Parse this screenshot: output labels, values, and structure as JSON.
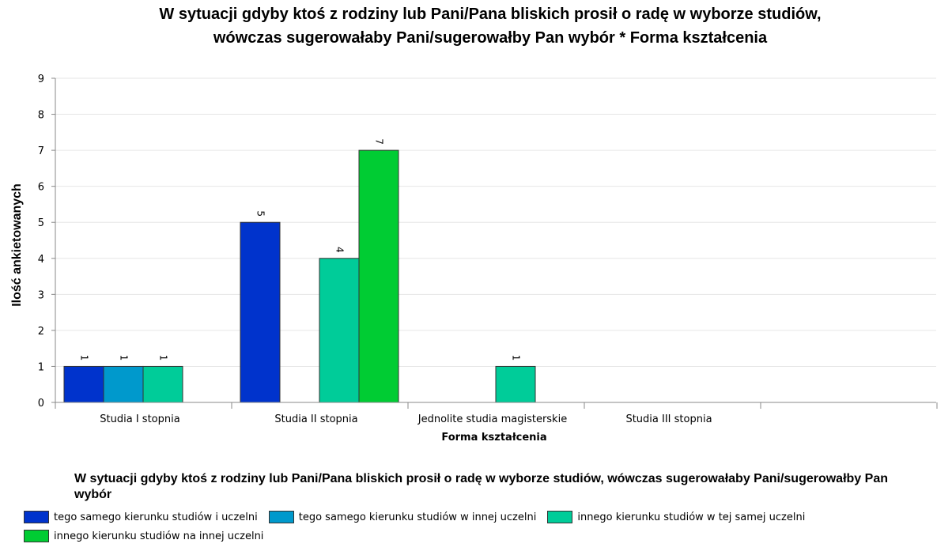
{
  "chart_data": {
    "type": "bar",
    "title": "W sytuacji gdyby ktoś z rodziny lub Pani/Pana bliskich prosił o radę w wyborze studiów, wówczas sugerowałaby Pani/sugerowałby Pan wybór * Forma kształcenia",
    "title_lines": [
      "W sytuacji gdyby ktoś z rodziny lub Pani/Pana bliskich prosił o radę w wyborze studiów,",
      "wówczas sugerowałaby Pani/sugerowałby Pan wybór * Forma kształcenia"
    ],
    "xlabel": "Forma kształcenia",
    "ylabel": "Ilość ankietowanych",
    "ylim": [
      0,
      9
    ],
    "yticks": [
      0,
      1,
      2,
      3,
      4,
      5,
      6,
      7,
      8,
      9
    ],
    "grid": true,
    "categories": [
      "Studia I stopnia",
      "Studia II stopnia",
      "Jednolite studia magisterskie",
      "Studia III stopnia"
    ],
    "series": [
      {
        "name": "tego samego kierunku studiów i uczelni",
        "color": "#0033cc",
        "values": [
          1,
          5,
          0,
          0
        ]
      },
      {
        "name": "tego samego kierunku studiów w innej uczelni",
        "color": "#0099cc",
        "values": [
          1,
          0,
          0,
          0
        ]
      },
      {
        "name": "innego kierunku studiów w tej samej uczelni",
        "color": "#00cc99",
        "values": [
          1,
          4,
          1,
          0
        ]
      },
      {
        "name": "innego kierunku studiów na innej uczelni",
        "color": "#00cc33",
        "values": [
          0,
          7,
          0,
          0
        ]
      }
    ],
    "legend": {
      "title": "W sytuacji gdyby ktoś z rodziny lub Pani/Pana bliskich prosił o radę w wyborze studiów, wówczas sugerowałaby Pani/sugerowałby Pan wybór",
      "position": "bottom"
    }
  }
}
